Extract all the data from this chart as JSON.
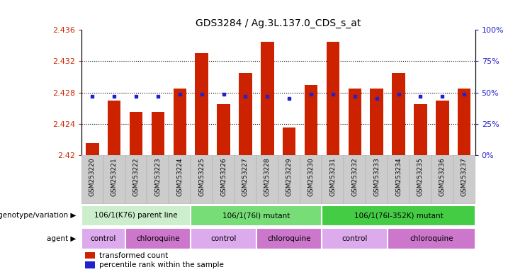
{
  "title": "GDS3284 / Ag.3L.137.0_CDS_s_at",
  "samples": [
    "GSM253220",
    "GSM253221",
    "GSM253222",
    "GSM253223",
    "GSM253224",
    "GSM253225",
    "GSM253226",
    "GSM253227",
    "GSM253228",
    "GSM253229",
    "GSM253230",
    "GSM253231",
    "GSM253232",
    "GSM253233",
    "GSM253234",
    "GSM253235",
    "GSM253236",
    "GSM253237"
  ],
  "bar_values": [
    2.4215,
    2.427,
    2.4255,
    2.4255,
    2.4285,
    2.433,
    2.4265,
    2.4305,
    2.4345,
    2.4235,
    2.429,
    2.4345,
    2.4285,
    2.4285,
    2.4305,
    2.4265,
    2.427,
    2.4285
  ],
  "dot_values": [
    2.4275,
    2.4275,
    2.4275,
    2.4275,
    2.4278,
    2.4278,
    2.4278,
    2.4275,
    2.4275,
    2.4272,
    2.4278,
    2.4278,
    2.4275,
    2.4272,
    2.4278,
    2.4275,
    2.4275,
    2.4278
  ],
  "ylim": [
    2.42,
    2.436
  ],
  "yticks": [
    2.42,
    2.424,
    2.428,
    2.432,
    2.436
  ],
  "right_yticks": [
    0,
    25,
    50,
    75,
    100
  ],
  "bar_color": "#cc2200",
  "dot_color": "#2222cc",
  "tick_color_left": "#cc2200",
  "tick_color_right": "#2222cc",
  "genotype_groups": [
    {
      "label": "106/1(K76) parent line",
      "start": 0,
      "end": 5,
      "color": "#cceecc"
    },
    {
      "label": "106/1(76I) mutant",
      "start": 5,
      "end": 11,
      "color": "#77dd77"
    },
    {
      "label": "106/1(76I-352K) mutant",
      "start": 11,
      "end": 18,
      "color": "#44cc44"
    }
  ],
  "agent_groups": [
    {
      "label": "control",
      "start": 0,
      "end": 2,
      "color": "#ddaaee"
    },
    {
      "label": "chloroquine",
      "start": 2,
      "end": 5,
      "color": "#cc77cc"
    },
    {
      "label": "control",
      "start": 5,
      "end": 8,
      "color": "#ddaaee"
    },
    {
      "label": "chloroquine",
      "start": 8,
      "end": 11,
      "color": "#cc77cc"
    },
    {
      "label": "control",
      "start": 11,
      "end": 14,
      "color": "#ddaaee"
    },
    {
      "label": "chloroquine",
      "start": 14,
      "end": 18,
      "color": "#cc77cc"
    }
  ],
  "legend_red_label": "transformed count",
  "legend_blue_label": "percentile rank within the sample",
  "genotype_label": "genotype/variation",
  "agent_label": "agent",
  "bg_color": "#ffffff",
  "xtick_bg_color": "#cccccc",
  "plot_bg_color": "#ffffff"
}
